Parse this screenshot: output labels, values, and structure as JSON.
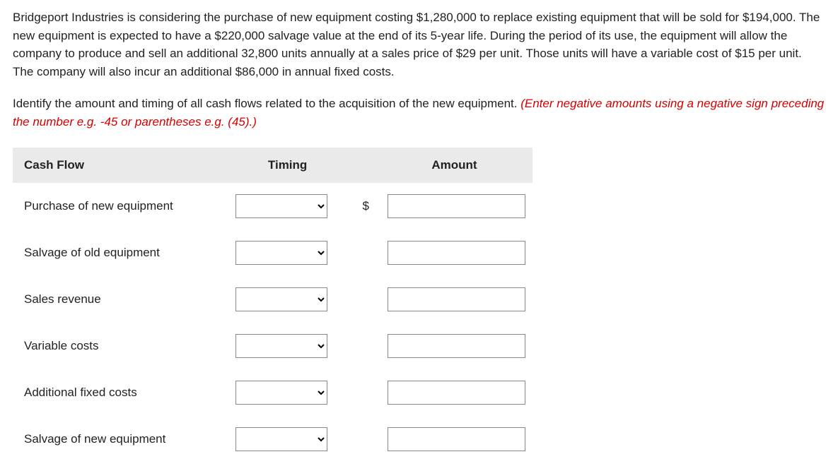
{
  "paragraph1": "Bridgeport Industries is considering the purchase of new equipment costing $1,280,000 to replace existing equipment that will be sold for $194,000. The new equipment is expected to have a $220,000 salvage value at the end of its 5-year life. During the period of its use, the equipment will allow the company to produce and sell an additional 32,800 units annually at a sales price of $29 per unit. Those units will have a variable cost of $15 per unit. The company will also incur an additional $86,000 in annual fixed costs.",
  "instruction_black": "Identify the amount and timing of all cash flows related to the acquisition of the new equipment. ",
  "instruction_red": "(Enter negative amounts using a negative sign preceding the number e.g. -45 or parentheses e.g. (45).)",
  "headers": {
    "col1": "Cash Flow",
    "col2": "Timing",
    "col3": "Amount"
  },
  "currency": "$",
  "rows": [
    {
      "label": "Purchase of new equipment",
      "show_dollar": true
    },
    {
      "label": "Salvage of old equipment",
      "show_dollar": false
    },
    {
      "label": "Sales revenue",
      "show_dollar": false
    },
    {
      "label": "Variable costs",
      "show_dollar": false
    },
    {
      "label": "Additional fixed costs",
      "show_dollar": false
    },
    {
      "label": "Salvage of new equipment",
      "show_dollar": false
    }
  ]
}
